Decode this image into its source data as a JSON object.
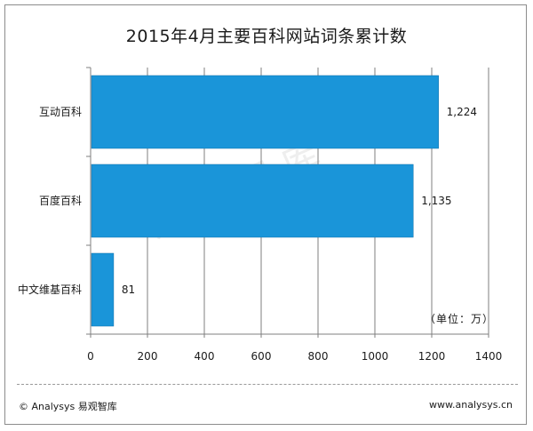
{
  "page": {
    "title": "2015年4月主要百科网站词条累计数",
    "unit_label": "（单位：万）",
    "watermark": "易观智库",
    "footer_left": "© Analysys 易观智库",
    "footer_right": "www.analysys.cn"
  },
  "colors": {
    "bar": "#1a95d9",
    "bar_edge": "#0f6fa8",
    "axis": "#7f7f7f",
    "grid": "#7f7f7f"
  },
  "chart_data": {
    "type": "bar",
    "orientation": "horizontal",
    "categories": [
      "互动百科",
      "百度百科",
      "中文维基百科"
    ],
    "values": [
      1224,
      1135,
      81
    ],
    "data_labels": [
      "1,224",
      "1,135",
      "81"
    ],
    "xlim": [
      0,
      1400
    ],
    "xticks": [
      0,
      200,
      400,
      600,
      800,
      1000,
      1200,
      1400
    ],
    "grid": "vertical",
    "title": "2015年4月主要百科网站词条累计数",
    "xlabel": "",
    "ylabel": ""
  }
}
